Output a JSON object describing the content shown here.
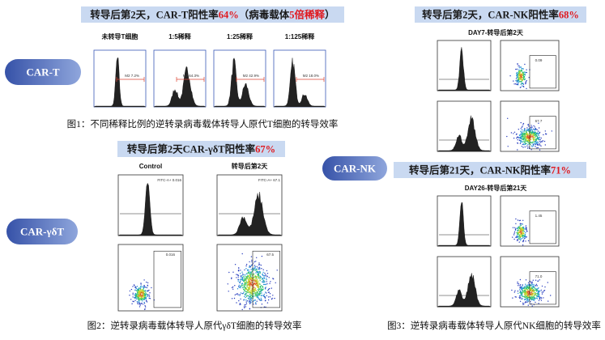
{
  "car_t": {
    "header": [
      {
        "text": "转导后第2天，CAR-T阳性率",
        "red": false
      },
      {
        "text": "64%",
        "red": true
      },
      {
        "text": "（病毒载体",
        "red": false
      },
      {
        "text": "5倍稀释",
        "red": true
      },
      {
        "text": "）",
        "red": false
      }
    ],
    "label": "CAR-T",
    "columns": [
      {
        "title": "未转导T细胞",
        "gate": "M2 7.2%"
      },
      {
        "title": "1:5稀释",
        "gate": "M2 64.3%"
      },
      {
        "title": "1:25稀释",
        "gate": "M2 42.9%"
      },
      {
        "title": "1:125稀释",
        "gate": "M2 18.0%"
      }
    ],
    "caption": "图1：不同稀释比例的逆转录病毒载体转导人原代T细胞的转导效率"
  },
  "car_gdt": {
    "header": [
      {
        "text": "转导后第2天CAR-γδT阳性率",
        "red": false
      },
      {
        "text": "67%",
        "red": true
      }
    ],
    "label": "CAR-γδT",
    "columns": [
      {
        "title": "Control",
        "hist_value": "FITC-A+ 0.016",
        "dot_value": "0.016"
      },
      {
        "title": "转导后第2天",
        "hist_value": "FITC-A+ 67.1",
        "dot_value": "67.5"
      }
    ],
    "caption": "图2：逆转录病毒载体转导人原代γδT细胞的转导效率"
  },
  "car_nk": {
    "label": "CAR-NK",
    "panels": [
      {
        "header": [
          {
            "text": "转导后第2天，CAR-NK阳性率",
            "red": false
          },
          {
            "text": "68%",
            "red": true
          }
        ],
        "day": "DAY7-转导后第2天",
        "rows": [
          {
            "value": "0.09"
          },
          {
            "value": "67.7"
          }
        ]
      },
      {
        "header": [
          {
            "text": "转导后第21天，CAR-NK阳性率",
            "red": false
          },
          {
            "text": "71%",
            "red": true
          }
        ],
        "day": "DAY26-转导后第21天",
        "rows": [
          {
            "value": "1.45"
          },
          {
            "value": "71.0"
          }
        ]
      }
    ],
    "caption": "图3：逆转录病毒载体转导人原代NK细胞的转导效率"
  }
}
